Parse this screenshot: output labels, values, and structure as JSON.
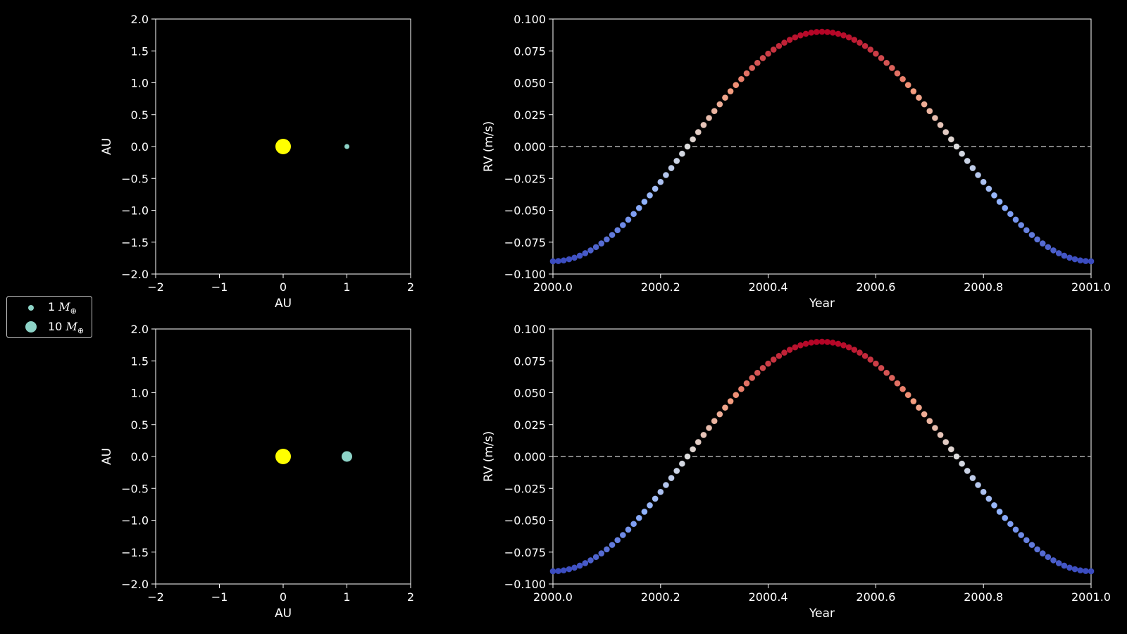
{
  "legend": {
    "items": [
      {
        "value": "1",
        "unit": "M",
        "sub": "⊕",
        "color": "#8dd3c7"
      },
      {
        "value": "10",
        "unit": "M",
        "sub": "⊕",
        "color": "#8dd3c7"
      }
    ]
  },
  "chart_data": [
    {
      "type": "scatter",
      "panel": "orbit-top",
      "xlabel": "AU",
      "ylabel": "AU",
      "xlim": [
        -2,
        2
      ],
      "ylim": [
        -2,
        2
      ],
      "xticks": [
        -2,
        -1,
        0,
        1,
        2
      ],
      "yticks": [
        -2.0,
        -1.5,
        -1.0,
        -0.5,
        0.0,
        0.5,
        1.0,
        1.5,
        2.0
      ],
      "points": [
        {
          "x": 0,
          "y": 0,
          "color": "#ffff00",
          "kind": "star"
        },
        {
          "x": 1,
          "y": 0,
          "color": "#8dd3c7",
          "kind": "planet-1"
        }
      ]
    },
    {
      "type": "scatter",
      "panel": "rv-top",
      "xlabel": "Year",
      "ylabel": "RV (m/s)",
      "xlim": [
        2000.0,
        2001.0
      ],
      "ylim": [
        -0.1,
        0.1
      ],
      "xticks": [
        2000.0,
        2000.2,
        2000.4,
        2000.6,
        2000.8,
        2001.0
      ],
      "yticks": [
        -0.1,
        -0.075,
        -0.05,
        -0.025,
        0.0,
        0.025,
        0.05,
        0.075,
        0.1
      ],
      "zero_line": true,
      "curve": {
        "amplitude": 0.09,
        "period": 1.0,
        "start": 2000.0,
        "end": 2001.0,
        "n_points": 101
      },
      "colormap": "coolwarm"
    },
    {
      "type": "scatter",
      "panel": "orbit-bottom",
      "xlabel": "AU",
      "ylabel": "AU",
      "xlim": [
        -2,
        2
      ],
      "ylim": [
        -2,
        2
      ],
      "xticks": [
        -2,
        -1,
        0,
        1,
        2
      ],
      "yticks": [
        -2.0,
        -1.5,
        -1.0,
        -0.5,
        0.0,
        0.5,
        1.0,
        1.5,
        2.0
      ],
      "points": [
        {
          "x": 0,
          "y": 0,
          "color": "#ffff00",
          "kind": "star"
        },
        {
          "x": 1,
          "y": 0,
          "color": "#8dd3c7",
          "kind": "planet-10"
        }
      ]
    },
    {
      "type": "scatter",
      "panel": "rv-bottom",
      "xlabel": "Year",
      "ylabel": "RV (m/s)",
      "xlim": [
        2000.0,
        2001.0
      ],
      "ylim": [
        -0.1,
        0.1
      ],
      "xticks": [
        2000.0,
        2000.2,
        2000.4,
        2000.6,
        2000.8,
        2001.0
      ],
      "yticks": [
        -0.1,
        -0.075,
        -0.05,
        -0.025,
        0.0,
        0.025,
        0.05,
        0.075,
        0.1
      ],
      "zero_line": true,
      "curve": {
        "amplitude": 0.09,
        "period": 1.0,
        "start": 2000.0,
        "end": 2001.0,
        "n_points": 101
      },
      "colormap": "coolwarm"
    }
  ]
}
